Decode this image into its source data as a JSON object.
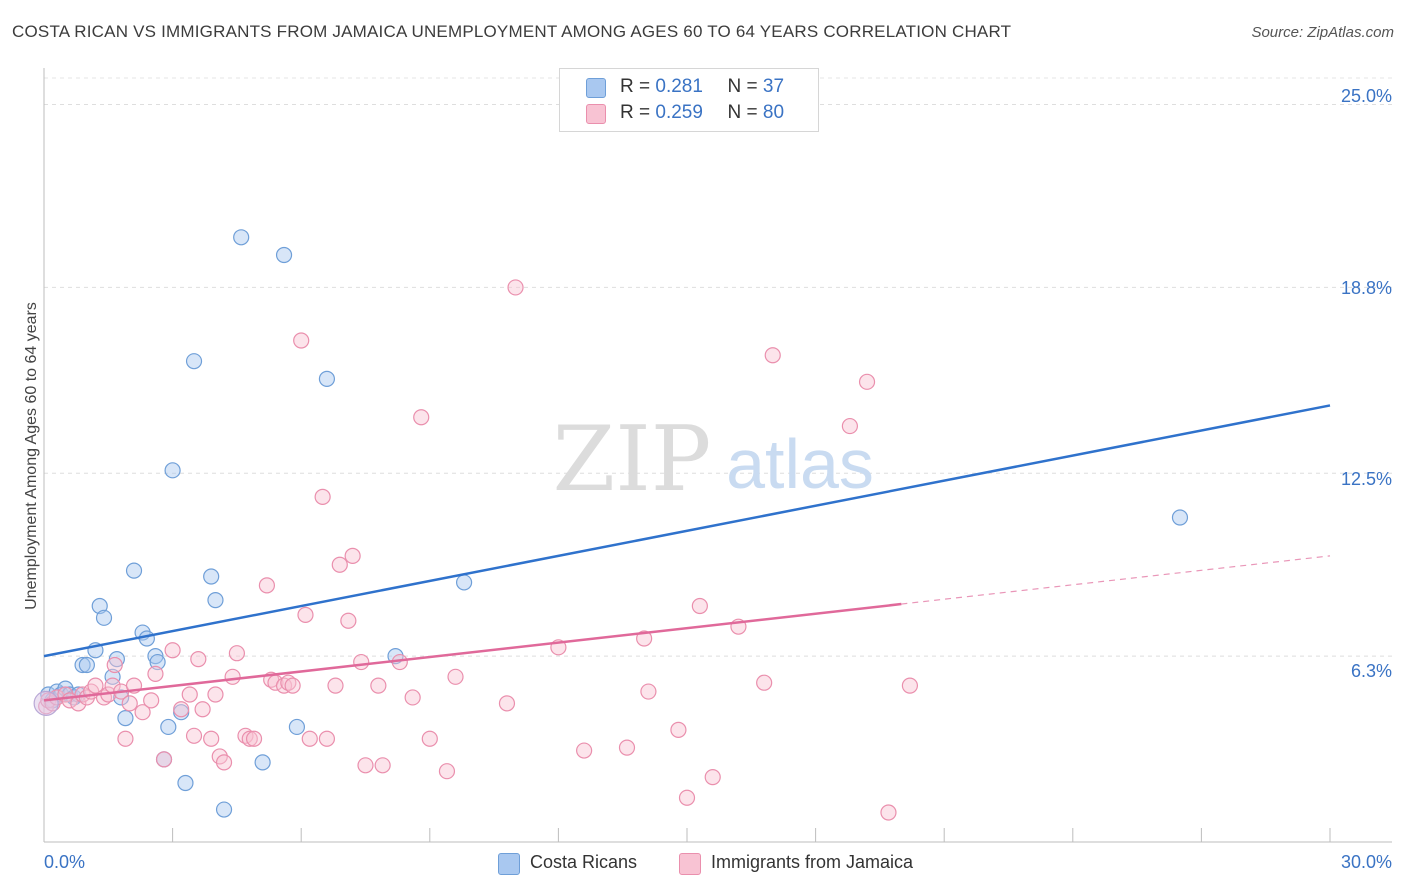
{
  "chart_data": {
    "type": "scatter",
    "title": "COSTA RICAN VS IMMIGRANTS FROM JAMAICA UNEMPLOYMENT AMONG AGES 60 TO 64 YEARS CORRELATION CHART",
    "source": "Source: ZipAtlas.com",
    "xlabel": "",
    "ylabel": "Unemployment Among Ages 60 to 64 years",
    "xlim": [
      0,
      30
    ],
    "ylim": [
      0,
      25.9
    ],
    "x_tick_labels": {
      "min": "0.0%",
      "max": "30.0%"
    },
    "y_ticks": [
      {
        "value": 6.3,
        "label": "6.3%"
      },
      {
        "value": 12.5,
        "label": "12.5%"
      },
      {
        "value": 18.8,
        "label": "18.8%"
      },
      {
        "value": 25.0,
        "label": "25.0%"
      }
    ],
    "grid": true,
    "watermark": {
      "zip": "ZIP",
      "atlas": "atlas"
    },
    "series": [
      {
        "name": "Costa Ricans",
        "color": "#a9c8f0",
        "stroke": "#6f9fd8",
        "line_color": "#2f72cc",
        "R": "0.281",
        "N": "37",
        "trend": {
          "x0": 0,
          "y0": 6.3,
          "x1": 30,
          "y1": 14.8,
          "dashed_from": null
        },
        "points": [
          [
            0.1,
            5.0
          ],
          [
            0.2,
            4.8
          ],
          [
            0.3,
            5.1
          ],
          [
            0.4,
            5.0
          ],
          [
            0.5,
            5.2
          ],
          [
            0.6,
            5.0
          ],
          [
            0.7,
            4.9
          ],
          [
            0.8,
            5.0
          ],
          [
            0.9,
            6.0
          ],
          [
            1.0,
            6.0
          ],
          [
            1.2,
            6.5
          ],
          [
            1.3,
            8.0
          ],
          [
            1.4,
            7.6
          ],
          [
            1.6,
            5.6
          ],
          [
            1.7,
            6.2
          ],
          [
            1.8,
            4.9
          ],
          [
            1.9,
            4.2
          ],
          [
            2.1,
            9.2
          ],
          [
            2.3,
            7.1
          ],
          [
            2.4,
            6.9
          ],
          [
            2.6,
            6.3
          ],
          [
            2.65,
            6.1
          ],
          [
            2.8,
            2.8
          ],
          [
            2.9,
            3.9
          ],
          [
            3.0,
            12.6
          ],
          [
            3.2,
            4.4
          ],
          [
            3.3,
            2.0
          ],
          [
            3.5,
            16.3
          ],
          [
            3.9,
            9.0
          ],
          [
            4.0,
            8.2
          ],
          [
            4.2,
            1.1
          ],
          [
            4.6,
            20.5
          ],
          [
            5.1,
            2.7
          ],
          [
            5.6,
            19.9
          ],
          [
            5.9,
            3.9
          ],
          [
            6.6,
            15.7
          ],
          [
            8.2,
            6.3
          ],
          [
            9.8,
            8.8
          ],
          [
            26.5,
            11.0
          ]
        ]
      },
      {
        "name": "Immigrants from Jamaica",
        "color": "#f8c3d3",
        "stroke": "#ea8fad",
        "line_color": "#e0699a",
        "R": "0.259",
        "N": "80",
        "trend": {
          "x0": 0,
          "y0": 4.8,
          "x1": 30,
          "y1": 9.7,
          "dashed_from": 20
        },
        "points": [
          [
            0.05,
            4.6
          ],
          [
            0.1,
            4.8
          ],
          [
            0.2,
            4.7
          ],
          [
            0.3,
            4.9
          ],
          [
            0.5,
            5.0
          ],
          [
            0.6,
            4.8
          ],
          [
            0.8,
            4.7
          ],
          [
            0.9,
            5.0
          ],
          [
            1.0,
            4.9
          ],
          [
            1.1,
            5.1
          ],
          [
            1.2,
            5.3
          ],
          [
            1.4,
            4.9
          ],
          [
            1.5,
            5.0
          ],
          [
            1.6,
            5.3
          ],
          [
            1.65,
            6.0
          ],
          [
            1.8,
            5.1
          ],
          [
            1.9,
            3.5
          ],
          [
            2.0,
            4.7
          ],
          [
            2.1,
            5.3
          ],
          [
            2.3,
            4.4
          ],
          [
            2.5,
            4.8
          ],
          [
            2.6,
            5.7
          ],
          [
            2.8,
            2.8
          ],
          [
            3.0,
            6.5
          ],
          [
            3.2,
            4.5
          ],
          [
            3.4,
            5.0
          ],
          [
            3.5,
            3.6
          ],
          [
            3.6,
            6.2
          ],
          [
            3.7,
            4.5
          ],
          [
            3.9,
            3.5
          ],
          [
            4.0,
            5.0
          ],
          [
            4.1,
            2.9
          ],
          [
            4.2,
            2.7
          ],
          [
            4.4,
            5.6
          ],
          [
            4.5,
            6.4
          ],
          [
            4.7,
            3.6
          ],
          [
            4.8,
            3.5
          ],
          [
            4.9,
            3.5
          ],
          [
            5.2,
            8.7
          ],
          [
            5.3,
            5.5
          ],
          [
            5.4,
            5.4
          ],
          [
            5.6,
            5.3
          ],
          [
            5.7,
            5.4
          ],
          [
            5.8,
            5.3
          ],
          [
            6.0,
            17.0
          ],
          [
            6.1,
            7.7
          ],
          [
            6.2,
            3.5
          ],
          [
            6.5,
            11.7
          ],
          [
            6.6,
            3.5
          ],
          [
            6.8,
            5.3
          ],
          [
            6.9,
            9.4
          ],
          [
            7.1,
            7.5
          ],
          [
            7.2,
            9.7
          ],
          [
            7.4,
            6.1
          ],
          [
            7.5,
            2.6
          ],
          [
            7.8,
            5.3
          ],
          [
            7.9,
            2.6
          ],
          [
            8.3,
            6.1
          ],
          [
            8.6,
            4.9
          ],
          [
            8.8,
            14.4
          ],
          [
            9.0,
            3.5
          ],
          [
            9.4,
            2.4
          ],
          [
            9.6,
            5.6
          ],
          [
            10.8,
            4.7
          ],
          [
            11.0,
            18.8
          ],
          [
            12.0,
            6.6
          ],
          [
            12.6,
            3.1
          ],
          [
            13.6,
            3.2
          ],
          [
            14.0,
            6.9
          ],
          [
            14.1,
            5.1
          ],
          [
            14.8,
            3.8
          ],
          [
            15.0,
            1.5
          ],
          [
            15.3,
            8.0
          ],
          [
            15.6,
            2.2
          ],
          [
            16.2,
            7.3
          ],
          [
            16.8,
            5.4
          ],
          [
            17.0,
            16.5
          ],
          [
            18.8,
            14.1
          ],
          [
            19.2,
            15.6
          ],
          [
            19.7,
            1.0
          ],
          [
            20.2,
            5.3
          ]
        ]
      }
    ]
  },
  "legend": {
    "items": [
      "Costa Ricans",
      "Immigrants from Jamaica"
    ]
  },
  "stats": {
    "r_label": "R =",
    "n_label": "N ="
  }
}
